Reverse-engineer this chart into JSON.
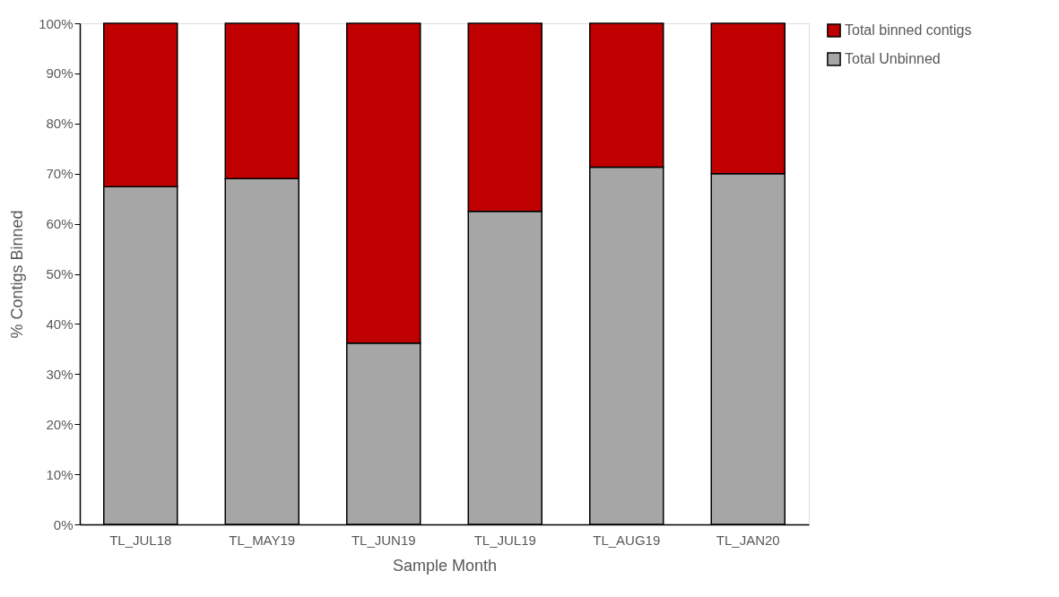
{
  "chart_data": {
    "type": "bar",
    "stacked": true,
    "xlabel": "Sample Month",
    "ylabel": "% Contigs Binned",
    "categories": [
      "TL_JUL18",
      "TL_MAY19",
      "TL_JUN19",
      "TL_JUL19",
      "TL_AUG19",
      "TL_JAN20"
    ],
    "series": [
      {
        "name": "Total Unbinned",
        "color": "#a6a6a6",
        "values": [
          67.4,
          69.0,
          36.2,
          62.5,
          71.3,
          70.0
        ]
      },
      {
        "name": "Total binned contigs",
        "color": "#c00000",
        "values": [
          32.6,
          31.0,
          63.8,
          37.5,
          28.7,
          30.0
        ]
      }
    ],
    "ylim": [
      0,
      100
    ],
    "yticks": [
      {
        "value": 0,
        "label": "0%"
      },
      {
        "value": 10,
        "label": "10%"
      },
      {
        "value": 20,
        "label": "20%"
      },
      {
        "value": 30,
        "label": "30%"
      },
      {
        "value": 40,
        "label": "40%"
      },
      {
        "value": 50,
        "label": "50%"
      },
      {
        "value": 60,
        "label": "60%"
      },
      {
        "value": 70,
        "label": "70%"
      },
      {
        "value": 80,
        "label": "80%"
      },
      {
        "value": 90,
        "label": "90%"
      },
      {
        "value": 100,
        "label": "100%"
      }
    ],
    "grid": false,
    "legend": "top right"
  }
}
